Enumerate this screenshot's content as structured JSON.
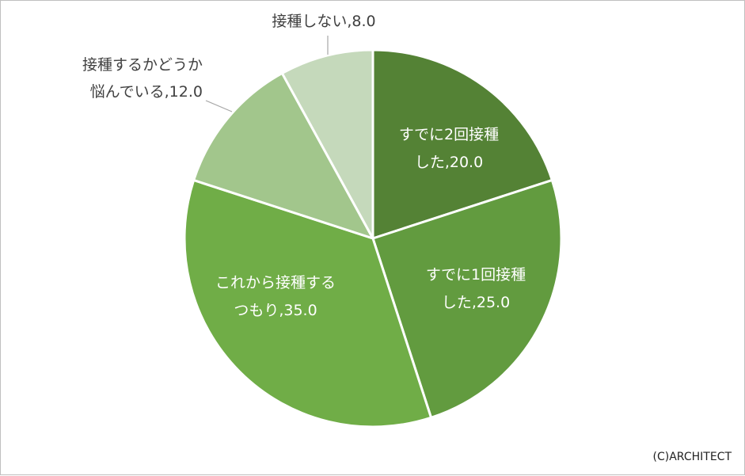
{
  "chart_data": {
    "type": "pie",
    "title": "",
    "start_angle_deg": 0,
    "direction": "clockwise",
    "slices": [
      {
        "label": "すでに2回接種した",
        "value": 20.0,
        "color": "#548235",
        "label_lines": [
          "すでに2回接種",
          "した,20.0"
        ]
      },
      {
        "label": "すでに1回接種した",
        "value": 25.0,
        "color": "#629b3f",
        "label_lines": [
          "すでに1回接種",
          "した,25.0"
        ]
      },
      {
        "label": "これから接種するつもり",
        "value": 35.0,
        "color": "#70ad47",
        "label_lines": [
          "これから接種する",
          "つもり,35.0"
        ]
      },
      {
        "label": "接種するかどうか悩んでいる",
        "value": 12.0,
        "color": "#a2c68c",
        "label_lines": [
          "接種するかどうか",
          "悩んでいる,12.0"
        ]
      },
      {
        "label": "接種しない",
        "value": 8.0,
        "color": "#c5d9bb",
        "label_lines": [
          "接種しない,8.0"
        ]
      }
    ],
    "data_labels": "inside-and-outside",
    "legend": "none"
  },
  "copyright": "(C)ARCHITECT"
}
